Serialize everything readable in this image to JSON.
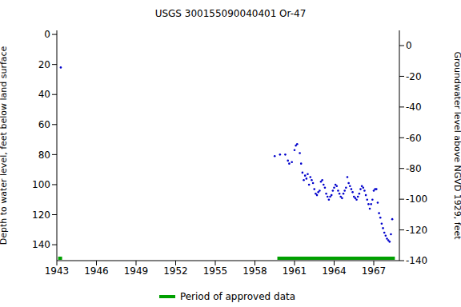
{
  "chart_data": {
    "type": "scatter",
    "title": "USGS 300155090040401 Or-47",
    "y_label": "Depth to water level, feet below land surface",
    "y2_label": "Groundwater level above NGVD 1929, feet",
    "xlim": [
      1943,
      1968.94
    ],
    "xticks": [
      1943,
      1946,
      1949,
      1952,
      1955,
      1958,
      1961,
      1964,
      1967
    ],
    "ylim": [
      150.6,
      -2.7
    ],
    "yticks": [
      0,
      20,
      40,
      60,
      80,
      100,
      120,
      140
    ],
    "y2lim": [
      -140,
      9.9
    ],
    "y2ticks": [
      -140,
      -120,
      -100,
      -80,
      -60,
      -40,
      -20,
      0
    ],
    "grid": false,
    "legend": "bottom",
    "series": [
      {
        "color": "#0000cc",
        "marker": "dot",
        "x": [
          1943.3,
          1959.5,
          1959.9,
          1960.3,
          1960.5,
          1960.6,
          1960.8,
          1961.0,
          1961.1,
          1961.2,
          1961.4,
          1961.5,
          1961.6,
          1961.7,
          1961.8,
          1961.9,
          1962.0,
          1962.1,
          1962.2,
          1962.3,
          1962.4,
          1962.5,
          1962.6,
          1962.7,
          1962.8,
          1962.9,
          1963.0,
          1963.1,
          1963.2,
          1963.3,
          1963.4,
          1963.5,
          1963.6,
          1963.7,
          1963.8,
          1963.9,
          1964.0,
          1964.1,
          1964.2,
          1964.3,
          1964.4,
          1964.5,
          1964.6,
          1964.7,
          1964.8,
          1964.9,
          1965.0,
          1965.1,
          1965.2,
          1965.3,
          1965.4,
          1965.5,
          1965.6,
          1965.7,
          1965.8,
          1965.9,
          1966.0,
          1966.1,
          1966.2,
          1966.3,
          1966.4,
          1966.5,
          1966.6,
          1966.7,
          1966.8,
          1966.9,
          1967.0,
          1967.1,
          1967.2,
          1967.3,
          1967.4,
          1967.5,
          1967.6,
          1967.7,
          1967.8,
          1967.9,
          1968.0,
          1968.1,
          1968.2,
          1968.3,
          1968.4
        ],
        "values": [
          22,
          81,
          80,
          80,
          84,
          86,
          85,
          77,
          74,
          73,
          79,
          86,
          92,
          97,
          94,
          96,
          93,
          100,
          95,
          97,
          99,
          103,
          106,
          107,
          105,
          104,
          98,
          97,
          100,
          102,
          106,
          108,
          110,
          108,
          107,
          104,
          102,
          100,
          101,
          104,
          106,
          108,
          109,
          106,
          104,
          102,
          95,
          99,
          101,
          103,
          105,
          108,
          109,
          110,
          108,
          106,
          103,
          101,
          102,
          104,
          107,
          110,
          113,
          116,
          113,
          110,
          104,
          103,
          103,
          112,
          119,
          122,
          126,
          129,
          132,
          134,
          136,
          137,
          138,
          133,
          123
        ]
      },
      {
        "name": "Period of approved data",
        "type": "line",
        "color": "#00a000",
        "x": [
          1943.1,
          1943.4,
          1943.5,
          1959.7,
          1968.6
        ],
        "values": [
          149,
          149,
          null,
          149,
          149
        ]
      }
    ]
  }
}
